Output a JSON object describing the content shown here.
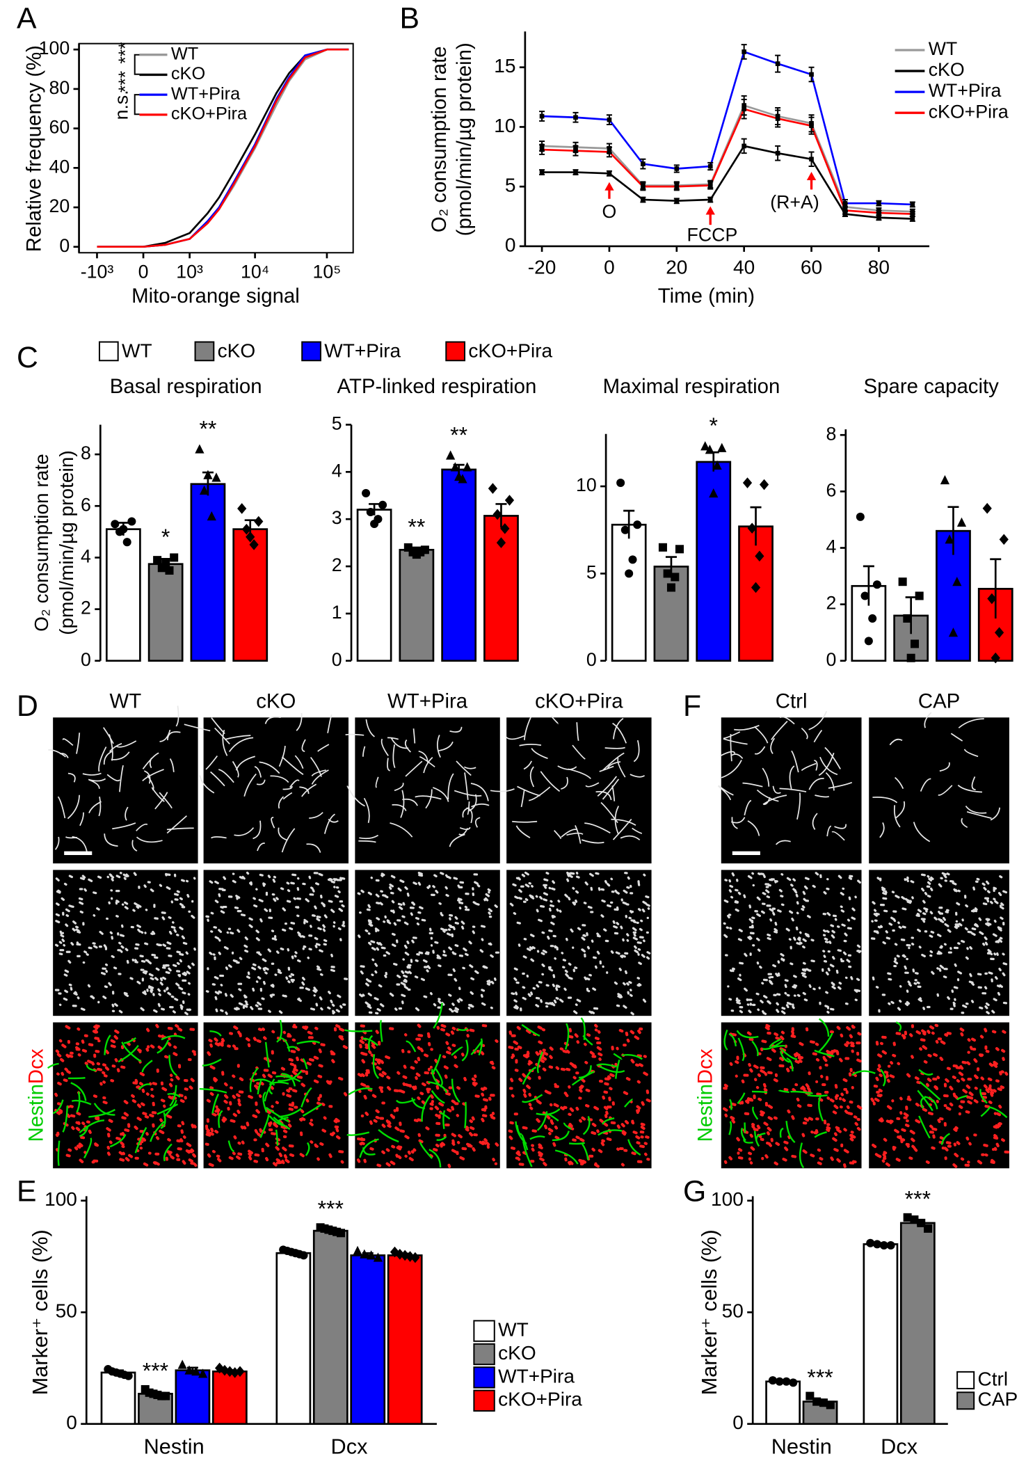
{
  "chart_data": [
    {
      "panel": "A",
      "type": "line",
      "xscale": "symlog",
      "xlabel": "Mito-orange signal",
      "ylabel": "Relative frequency (%)",
      "x": [
        -1000,
        0,
        300,
        1000,
        2000,
        3000,
        5000,
        10000,
        20000,
        30000,
        50000,
        100000,
        200000
      ],
      "xlim": [
        -2000,
        230000
      ],
      "xticks": [
        {
          "value": -1000,
          "label": "-10³"
        },
        0,
        {
          "value": 1000,
          "label": "10³"
        },
        {
          "value": 10000,
          "label": "10⁴"
        },
        {
          "value": 100000,
          "label": "10⁵"
        }
      ],
      "ylim": [
        -3,
        103
      ],
      "yticks": [
        0,
        20,
        40,
        60,
        80,
        100
      ],
      "series": [
        {
          "name": "WT",
          "color": "#999999",
          "values": [
            0,
            0,
            1,
            4,
            12,
            19,
            31,
            50,
            72,
            84,
            95,
            100,
            100
          ]
        },
        {
          "name": "cKO",
          "color": "#000000",
          "values": [
            0,
            0,
            2,
            7,
            17,
            25,
            38,
            57,
            78,
            88,
            97,
            100,
            100
          ]
        },
        {
          "name": "WT+Pira",
          "color": "#0000ff",
          "values": [
            0,
            0,
            1,
            4,
            13,
            20,
            33,
            52,
            75,
            86,
            97,
            100,
            100
          ]
        },
        {
          "name": "cKO+Pira",
          "color": "#ff0000",
          "values": [
            0,
            0,
            1,
            4,
            12,
            19,
            32,
            51,
            74,
            85,
            96,
            100,
            100
          ]
        }
      ],
      "annotations": [
        "***",
        "***",
        "n.s."
      ]
    },
    {
      "panel": "B",
      "type": "line_errorbar",
      "xlabel": "Time (min)",
      "ylabel": [
        "O₂ consumption rate",
        "(pmol/min/µg protein)"
      ],
      "x": [
        -20,
        -10,
        0,
        10,
        20,
        30,
        40,
        50,
        60,
        70,
        80,
        90
      ],
      "xlim": [
        -25,
        95
      ],
      "xticks": [
        -20,
        0,
        20,
        40,
        60,
        80
      ],
      "ylim": [
        0,
        18
      ],
      "yticks": [
        0,
        5,
        10,
        15
      ],
      "series": [
        {
          "name": "WT",
          "color": "#999999",
          "values": [
            8.4,
            8.3,
            8.2,
            5.1,
            5.1,
            5.2,
            11.8,
            10.9,
            10.3,
            3.3,
            3.0,
            2.9
          ],
          "errors": [
            0.4,
            0.4,
            0.4,
            0.3,
            0.3,
            0.3,
            0.8,
            0.7,
            0.7,
            0.3,
            0.2,
            0.2
          ]
        },
        {
          "name": "cKO",
          "color": "#000000",
          "values": [
            6.2,
            6.2,
            6.1,
            3.9,
            3.8,
            3.9,
            8.4,
            7.8,
            7.3,
            2.7,
            2.4,
            2.3
          ],
          "errors": [
            0.2,
            0.2,
            0.2,
            0.2,
            0.2,
            0.2,
            0.6,
            0.6,
            0.6,
            0.2,
            0.2,
            0.2
          ]
        },
        {
          "name": "WT+Pira",
          "color": "#0000ff",
          "values": [
            10.9,
            10.8,
            10.6,
            6.9,
            6.5,
            6.7,
            16.3,
            15.3,
            14.4,
            3.6,
            3.6,
            3.5
          ],
          "errors": [
            0.4,
            0.4,
            0.4,
            0.4,
            0.3,
            0.3,
            0.6,
            0.7,
            0.6,
            0.3,
            0.2,
            0.2
          ]
        },
        {
          "name": "cKO+Pira",
          "color": "#ff0000",
          "values": [
            8.1,
            8.0,
            7.9,
            5.0,
            5.0,
            5.1,
            11.5,
            10.7,
            10.1,
            3.0,
            2.8,
            2.7
          ],
          "errors": [
            0.4,
            0.4,
            0.4,
            0.3,
            0.3,
            0.3,
            0.8,
            0.7,
            0.7,
            0.3,
            0.2,
            0.2
          ]
        }
      ],
      "annotations": [
        "O",
        "FCCP",
        "(R+A)"
      ]
    },
    {
      "panel": "C",
      "type": "bar_points",
      "ylabel": [
        "O₂ consumption rate",
        "(pmol/min/µg protein)"
      ],
      "series": [
        {
          "name": "WT",
          "color": "#ffffff"
        },
        {
          "name": "cKO",
          "color": "#808080"
        },
        {
          "name": "WT+Pira",
          "color": "#0000ff"
        },
        {
          "name": "cKO+Pira",
          "color": "#ff0000"
        }
      ],
      "subplots": [
        {
          "title": "Basal respiration",
          "ylim": [
            0,
            9.15
          ],
          "yticks": [
            0,
            2,
            4,
            6,
            8
          ],
          "values": [
            5.1,
            3.75,
            6.85,
            5.1
          ],
          "errors": [
            0.25,
            0.2,
            0.45,
            0.35
          ],
          "points": [
            [
              5.3,
              5.4,
              5.0,
              4.6,
              5.1
            ],
            [
              3.9,
              4.0,
              3.6,
              3.5,
              3.8
            ],
            [
              8.2,
              7.1,
              6.6,
              5.6,
              7.2
            ],
            [
              5.9,
              5.4,
              5.1,
              4.5,
              4.8
            ]
          ],
          "annotations": [
            null,
            "*",
            "**",
            null
          ]
        },
        {
          "title": "ATP-linked respiration",
          "ylim": [
            0,
            5
          ],
          "yticks": [
            0,
            1,
            2,
            3,
            4,
            5
          ],
          "values": [
            3.2,
            2.35,
            4.05,
            3.07
          ],
          "errors": [
            0.12,
            0.05,
            0.1,
            0.25
          ],
          "points": [
            [
              3.55,
              3.3,
              3.15,
              3.0,
              2.9
            ],
            [
              2.4,
              2.35,
              2.3,
              2.3,
              2.25
            ],
            [
              4.35,
              4.1,
              4.1,
              3.85,
              3.9
            ],
            [
              3.65,
              3.4,
              3.1,
              2.8,
              2.5
            ]
          ],
          "annotations": [
            null,
            "**",
            "**",
            null
          ]
        },
        {
          "title": "Maximal respiration",
          "ylim": [
            0,
            13
          ],
          "yticks": [
            0,
            5,
            10
          ],
          "values": [
            7.8,
            5.4,
            11.4,
            7.7
          ],
          "errors": [
            0.8,
            0.55,
            0.55,
            1.1
          ],
          "points": [
            [
              10.2,
              7.8,
              7.5,
              5.8,
              5.0
            ],
            [
              6.5,
              6.4,
              5.0,
              4.8,
              4.2
            ],
            [
              12.3,
              12.2,
              12.1,
              11.2,
              9.6
            ],
            [
              10.2,
              10.1,
              7.6,
              6.0,
              4.2
            ]
          ],
          "annotations": [
            null,
            null,
            "*",
            null
          ]
        },
        {
          "title": "Spare capacity",
          "ylim": [
            0,
            8.2
          ],
          "yticks": [
            0,
            2,
            4,
            6,
            8
          ],
          "values": [
            2.65,
            1.6,
            4.6,
            2.55
          ],
          "errors": [
            0.7,
            0.65,
            0.85,
            1.05
          ],
          "points": [
            [
              5.1,
              2.7,
              2.3,
              1.5,
              0.7
            ],
            [
              2.8,
              2.3,
              1.5,
              0.6,
              0.1
            ],
            [
              6.4,
              4.9,
              4.3,
              2.8,
              1.0
            ],
            [
              5.4,
              4.3,
              2.2,
              1.0,
              0.1
            ]
          ],
          "annotations": [
            null,
            null,
            null,
            null
          ]
        }
      ]
    },
    {
      "panel": "E",
      "type": "grouped_bar_points",
      "ylabel": "Marker⁺ cells (%)",
      "categories": [
        "Nestin",
        "Dcx"
      ],
      "ylim": [
        0,
        102
      ],
      "yticks": [
        0,
        50,
        100
      ],
      "series": [
        {
          "name": "WT",
          "color": "#ffffff",
          "values": [
            23,
            76.5
          ],
          "errors": [
            1,
            1
          ],
          "points": [
            [
              24.5,
              23.5,
              23,
              22.5,
              22,
              21.5
            ],
            [
              78,
              77.5,
              77,
              76.5,
              76,
              75.5
            ]
          ]
        },
        {
          "name": "cKO",
          "color": "#808080",
          "values": [
            13.5,
            86.5
          ],
          "errors": [
            0.8,
            0.6
          ],
          "points": [
            [
              15.5,
              14,
              13.5,
              13,
              12.5,
              12.5
            ],
            [
              88,
              87.5,
              87,
              86.5,
              86,
              85.5
            ]
          ],
          "annotations": [
            "***",
            "***"
          ]
        },
        {
          "name": "WT+Pira",
          "color": "#0000ff",
          "values": [
            24,
            75.5
          ],
          "errors": [
            1.2,
            1
          ],
          "points": [
            [
              26.5,
              24,
              23.5,
              22.5
            ],
            [
              77.5,
              76,
              75.5,
              74.5
            ]
          ]
        },
        {
          "name": "cKO+Pira",
          "color": "#ff0000",
          "values": [
            23.5,
            75.5
          ],
          "errors": [
            0.6,
            0.8
          ],
          "points": [
            [
              25,
              24,
              23.5,
              23,
              23.5
            ],
            [
              77,
              76,
              75.5,
              75,
              74.5
            ]
          ]
        }
      ]
    },
    {
      "panel": "G",
      "type": "grouped_bar_points",
      "ylabel": "Marker⁺ cells (%)",
      "categories": [
        "Nestin",
        "Dcx"
      ],
      "ylim": [
        0,
        102
      ],
      "yticks": [
        0,
        50,
        100
      ],
      "series": [
        {
          "name": "Ctrl",
          "color": "#ffffff",
          "values": [
            19,
            80.5
          ],
          "errors": [
            0.5,
            0.5
          ],
          "points": [
            [
              19.5,
              19,
              19,
              18.5
            ],
            [
              81,
              80.5,
              80,
              80
            ]
          ]
        },
        {
          "name": "CAP",
          "color": "#808080",
          "values": [
            10,
            90
          ],
          "errors": [
            0.9,
            1.1
          ],
          "points": [
            [
              12.5,
              10,
              9.5,
              8.5
            ],
            [
              92.5,
              91.5,
              90,
              87.5
            ]
          ],
          "annotations": [
            "***",
            "***"
          ]
        }
      ]
    }
  ],
  "images": [
    {
      "panel": "D",
      "columns": [
        "WT",
        "cKO",
        "WT+Pira",
        "cKO+Pira"
      ],
      "row_label": [
        "Nestin",
        "Dcx"
      ]
    },
    {
      "panel": "F",
      "columns": [
        "Ctrl",
        "CAP"
      ],
      "row_label": [
        "Nestin",
        "Dcx"
      ]
    }
  ]
}
